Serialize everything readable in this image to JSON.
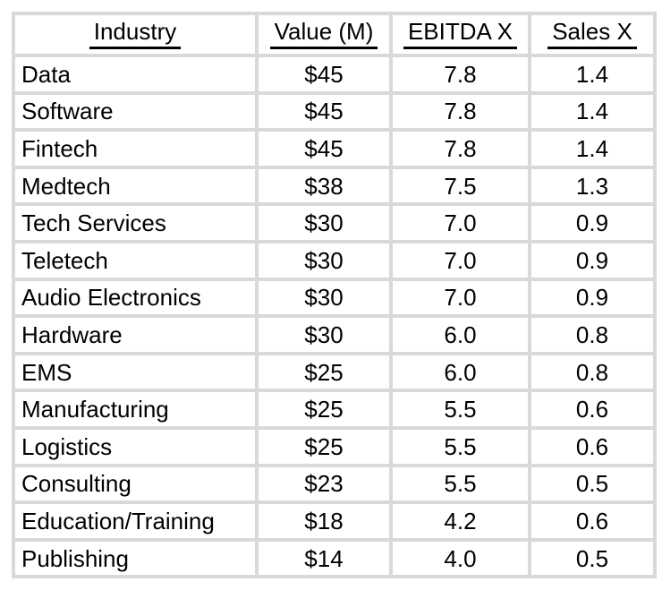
{
  "chart_data": {
    "type": "table",
    "columns": [
      "Industry",
      "Value (M)",
      "EBITDA X",
      "Sales X"
    ],
    "column_align": [
      "left",
      "center",
      "center",
      "center"
    ],
    "rows": [
      [
        "Data",
        "$45",
        "7.8",
        "1.4"
      ],
      [
        "Software",
        "$45",
        "7.8",
        "1.4"
      ],
      [
        "Fintech",
        "$45",
        "7.8",
        "1.4"
      ],
      [
        "Medtech",
        "$38",
        "7.5",
        "1.3"
      ],
      [
        "Tech Services",
        "$30",
        "7.0",
        "0.9"
      ],
      [
        "Teletech",
        "$30",
        "7.0",
        "0.9"
      ],
      [
        "Audio Electronics",
        "$30",
        "7.0",
        "0.9"
      ],
      [
        "Hardware",
        "$30",
        "6.0",
        "0.8"
      ],
      [
        "EMS",
        "$25",
        "6.0",
        "0.8"
      ],
      [
        "Manufacturing",
        "$25",
        "5.5",
        "0.6"
      ],
      [
        "Logistics",
        "$25",
        "5.5",
        "0.6"
      ],
      [
        "Consulting",
        "$23",
        "5.5",
        "0.5"
      ],
      [
        "Education/Training",
        "$18",
        "4.2",
        "0.6"
      ],
      [
        "Publishing",
        "$14",
        "4.0",
        "0.5"
      ]
    ],
    "layout": {
      "grid": "on",
      "header_underline": true,
      "header_centered": true
    }
  },
  "colors": {
    "grid_line": "#d9d9d9",
    "text": "#000000",
    "background": "#ffffff",
    "header_underline": "#000000"
  }
}
